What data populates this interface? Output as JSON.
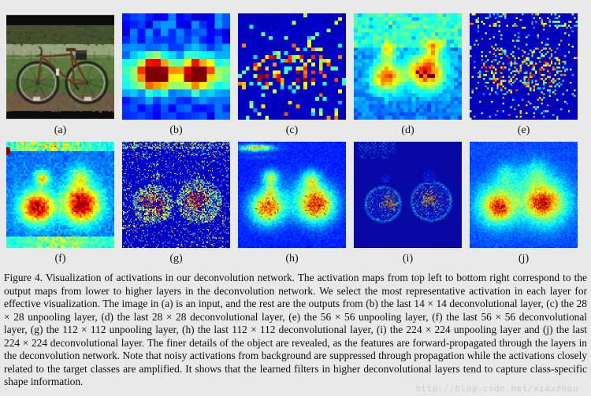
{
  "page": {
    "background": "#e9e9e9"
  },
  "figure": {
    "panels": [
      {
        "id": "a",
        "label": "(a)",
        "kind": "input-photo",
        "content": "bicycle standing in a grassy field"
      },
      {
        "id": "b",
        "label": "(b)",
        "kind": "activation-heatmap",
        "layer": "last 14 × 14 deconvolutional layer"
      },
      {
        "id": "c",
        "label": "(c)",
        "kind": "activation-heatmap",
        "layer": "28 × 28 unpooling layer"
      },
      {
        "id": "d",
        "label": "(d)",
        "kind": "activation-heatmap",
        "layer": "last 28 × 28 deconvolutional layer"
      },
      {
        "id": "e",
        "label": "(e)",
        "kind": "activation-heatmap",
        "layer": "56 × 56 unpooling layer"
      },
      {
        "id": "f",
        "label": "(f)",
        "kind": "activation-heatmap",
        "layer": "last 56 × 56 deconvolutional layer"
      },
      {
        "id": "g",
        "label": "(g)",
        "kind": "activation-heatmap",
        "layer": "112 × 112 unpooling layer"
      },
      {
        "id": "h",
        "label": "(h)",
        "kind": "activation-heatmap",
        "layer": "last 112 × 112 deconvolutional layer"
      },
      {
        "id": "i",
        "label": "(i)",
        "kind": "activation-heatmap",
        "layer": "224 × 224 unpooling layer"
      },
      {
        "id": "j",
        "label": "(j)",
        "kind": "activation-heatmap",
        "layer": "last 224 × 224 deconvolutional layer"
      }
    ],
    "caption": "Figure 4. Visualization of activations in our deconvolution network. The activation maps from top left to bottom right correspond to the output maps from lower to higher layers in the deconvolution network. We select the most representative activation in each layer for effective visualization. The image in (a) is an input, and the rest are the outputs from (b) the last 14 × 14 deconvolutional layer, (c) the 28 × 28 unpooling layer, (d) the last 28 × 28 deconvolutional layer, (e) the 56 × 56 unpooling layer, (f) the last 56 × 56 deconvolutional layer, (g) the 112 × 112 unpooling layer, (h) the last 112 × 112 deconvolutional layer, (i) the 224 × 224 unpooling layer and (j) the last 224 × 224 deconvolutional layer. The finer details of the object are revealed, as the features are forward-propagated through the layers in the deconvolution network. Note that noisy activations from background are suppressed through propagation while the activations closely related to the target classes are amplified. It shows that the learned filters in higher deconvolutional layers tend to capture class-specific shape information.",
    "watermark": "http://blog.csdn.net/xiaxzhou",
    "colors": {
      "page_background": "#e9e9e9",
      "heatmap_background_navy": "#10148c",
      "heatmap_hot_red": "#8b1500",
      "caption_text": "#0d0d0d",
      "watermark_text": "#cdcdcd",
      "bike_frame_rust": "#6b3324"
    }
  }
}
